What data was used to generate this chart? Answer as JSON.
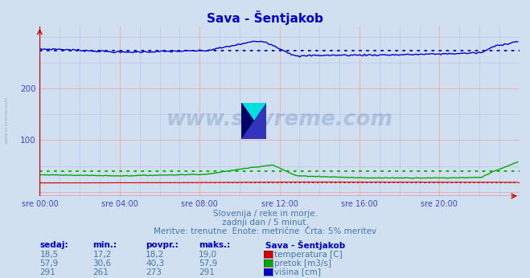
{
  "title": "Sava - Šentjakob",
  "bg_color": "#d0e0f0",
  "plot_bg_color": "#d0e0f0",
  "grid_color_major": "#ff9999",
  "grid_color_minor": "#bbbbee",
  "xlabel_color": "#4444cc",
  "ylabel_color": "#4444cc",
  "text_color": "#4477aa",
  "title_color": "#0000cc",
  "subtitle_lines": [
    "Slovenija / reke in morje.",
    "zadnji dan / 5 minut.",
    "Meritve: trenutne  Enote: metrične  Črta: 5% meritev"
  ],
  "xtick_labels": [
    "sre 00:00",
    "sre 04:00",
    "sre 08:00",
    "sre 12:00",
    "sre 16:00",
    "sre 20:00"
  ],
  "xtick_positions": [
    0,
    48,
    96,
    144,
    192,
    240
  ],
  "ytick_positions": [
    0,
    100,
    200
  ],
  "ytick_labels": [
    "",
    "100",
    "200"
  ],
  "ylim": [
    -8,
    320
  ],
  "xlim": [
    0,
    288
  ],
  "num_points": 288,
  "temp_color": "#dd0000",
  "flow_color": "#00aa00",
  "height_color": "#0000cc",
  "temp_sedaj": 18.5,
  "temp_min": 17.2,
  "temp_avg": 18.2,
  "temp_max": 19.0,
  "flow_sedaj": 57.9,
  "flow_min": 30.6,
  "flow_avg": 40.3,
  "flow_max": 57.9,
  "height_sedaj": 291,
  "height_min": 261,
  "height_avg": 273,
  "height_max": 291,
  "watermark": "www.si-vreme.com",
  "watermark_color": "#5577aa",
  "watermark_alpha": 0.28,
  "side_text_color": "#8899aa",
  "side_text": "www.si-vreme.com"
}
